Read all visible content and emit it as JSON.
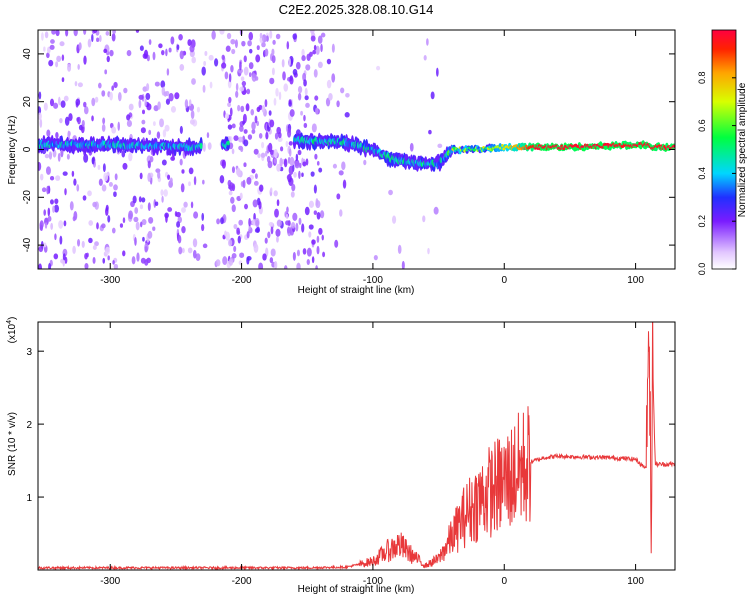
{
  "title": "C2E2.2025.328.08.10.G14",
  "colors": {
    "snr_line": "#e8383a",
    "axis": "#000000",
    "background": "#ffffff"
  },
  "chart_data": [
    {
      "type": "heatmap",
      "name": "spectrogram",
      "xlabel": "Height of straight line (km)",
      "ylabel": "Frequency (Hz)",
      "xlim": [
        -355,
        130
      ],
      "ylim": [
        -50,
        50
      ],
      "xticks": [
        -300,
        -200,
        -100,
        0,
        100
      ],
      "yticks": [
        -40,
        -20,
        0,
        20,
        40
      ],
      "colorbar": {
        "label": "Normalized spectral amplitude",
        "range": [
          0,
          1
        ],
        "ticks": [
          "0.0",
          "0.2",
          "0.4",
          "0.6",
          "0.8"
        ]
      },
      "signal_trace": [
        {
          "x": -355,
          "y": 2
        },
        {
          "x": -300,
          "y": 2
        },
        {
          "x": -240,
          "y": 1
        },
        {
          "x": -160,
          "y": 4
        },
        {
          "x": -120,
          "y": 3
        },
        {
          "x": -100,
          "y": 0
        },
        {
          "x": -85,
          "y": -4
        },
        {
          "x": -65,
          "y": -6
        },
        {
          "x": -50,
          "y": -6
        },
        {
          "x": -40,
          "y": 0
        },
        {
          "x": -20,
          "y": 0
        },
        {
          "x": 0,
          "y": 1
        },
        {
          "x": 50,
          "y": 1
        },
        {
          "x": 108,
          "y": 2
        },
        {
          "x": 112,
          "y": 1
        },
        {
          "x": 130,
          "y": 1
        }
      ]
    },
    {
      "type": "line",
      "name": "snr",
      "xlabel": "Height of straight line (km)",
      "ylabel": "SNR (10 * v/v)",
      "y_multiplier": "(x10",
      "y_multiplier_exp": "4",
      "xlim": [
        -355,
        130
      ],
      "ylim": [
        0,
        3.4
      ],
      "xticks": [
        -300,
        -200,
        -100,
        0,
        100
      ],
      "yticks": [
        1,
        2,
        3
      ],
      "series": [
        {
          "name": "SNR",
          "x": [
            -355,
            -250,
            -150,
            -120,
            -100,
            -90,
            -80,
            -70,
            -60,
            -50,
            -40,
            -30,
            -20,
            -10,
            0,
            10,
            20,
            30,
            40,
            60,
            80,
            100,
            104,
            108,
            110,
            112,
            113,
            115,
            130
          ],
          "y": [
            0.03,
            0.03,
            0.03,
            0.04,
            0.12,
            0.25,
            0.35,
            0.2,
            0.06,
            0.15,
            0.45,
            0.75,
            0.95,
            1.1,
            1.2,
            1.35,
            1.48,
            1.54,
            1.56,
            1.55,
            1.54,
            1.52,
            1.45,
            1.4,
            3.3,
            0.4,
            2.8,
            1.45,
            1.45
          ]
        }
      ]
    }
  ]
}
